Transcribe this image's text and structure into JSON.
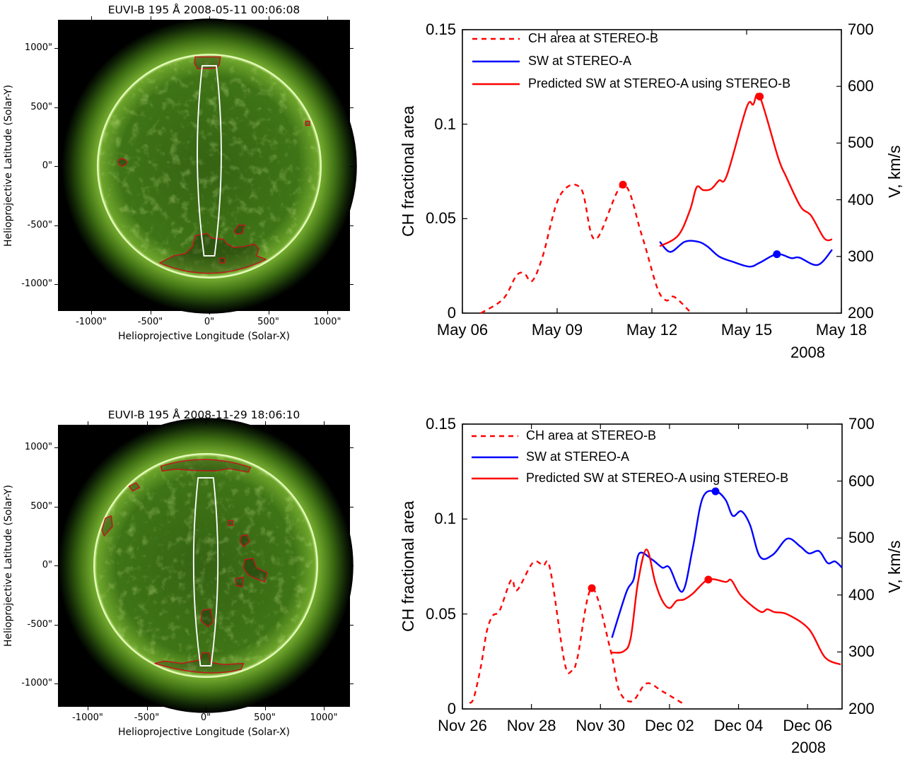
{
  "figure": {
    "panels": [
      {
        "image_title": "EUVI-B 195 Å 2008-05-11 00:06:08",
        "image_xlabel": "Helioprojective Longitude (Solar-X)",
        "image_ylabel": "Helioprojective Latitude (Solar-Y)",
        "image_xticks": [
          "-1000\"",
          "-500\"",
          "0\"",
          "500\"",
          "1000\""
        ],
        "image_yticks": [
          "1000\"",
          "500\"",
          "0\"",
          "-500\"",
          "-1000\""
        ]
      },
      {
        "image_title": "EUVI-B 195 Å 2008-11-29 18:06:10",
        "image_xlabel": "Helioprojective Longitude (Solar-X)",
        "image_ylabel": "Helioprojective Latitude (Solar-Y)",
        "image_xticks": [
          "-1000\"",
          "-500\"",
          "0\"",
          "500\"",
          "1000\""
        ],
        "image_yticks": [
          "1000\"",
          "500\"",
          "0\"",
          "-500\"",
          "-1000\""
        ]
      }
    ],
    "colors": {
      "ch_area": "#ff0000",
      "sw_observed": "#0000ff",
      "sw_predicted": "#ff0000",
      "slit": "#ffffff",
      "contour": "#c0181c"
    }
  },
  "chart_data": [
    {
      "type": "line",
      "ylabel": "CH fractional area",
      "ylabel_right": "V, km/s",
      "ylim": [
        0,
        0.15
      ],
      "ylim_right": [
        200,
        700
      ],
      "yticks": [
        "0",
        "0.05",
        "0.1",
        "0.15"
      ],
      "yticks_right": [
        "200",
        "300",
        "400",
        "500",
        "600",
        "700"
      ],
      "xlim": [
        "2008-05-06T00:00",
        "2008-05-18T00:00"
      ],
      "xticks": [
        {
          "date": "2008-05-06T00:00",
          "label": "May 06"
        },
        {
          "date": "2008-05-09T00:00",
          "label": "May 09"
        },
        {
          "date": "2008-05-12T00:00",
          "label": "May 12"
        },
        {
          "date": "2008-05-15T00:00",
          "label": "May 15"
        },
        {
          "date": "2008-05-18T00:00",
          "label": "May 18"
        }
      ],
      "year_label": "2008",
      "grid": false,
      "legend_position": "top-left",
      "series": [
        {
          "name": "CH area at STEREO-B",
          "axis": "left",
          "style": "dashed",
          "color": "#ff0000",
          "x": [
            "2008-05-06T14:00",
            "2008-05-07T07:00",
            "2008-05-07T17:00",
            "2008-05-07T23:00",
            "2008-05-08T05:00",
            "2008-05-08T13:00",
            "2008-05-09T02:00",
            "2008-05-09T18:00",
            "2008-05-10T05:00",
            "2008-05-11T02:00",
            "2008-05-11T16:00",
            "2008-05-12T04:00",
            "2008-05-12T11:00",
            "2008-05-12T17:00",
            "2008-05-13T06:00"
          ],
          "y": [
            0,
            0.0075,
            0.0198,
            0.021,
            0.017,
            0.03,
            0.062,
            0.066,
            0.039,
            0.068,
            0.042,
            0.0135,
            0.0067,
            0.0086,
            0
          ],
          "marker": {
            "x": "2008-05-11T02:00",
            "y": 0.068
          }
        },
        {
          "name": "SW at STEREO-A",
          "axis": "right",
          "style": "solid",
          "color": "#0000ff",
          "x": [
            "2008-05-12T06:00",
            "2008-05-12T14:00",
            "2008-05-13T01:00",
            "2008-05-13T11:00",
            "2008-05-13T18:00",
            "2008-05-14T03:00",
            "2008-05-14T13:00",
            "2008-05-15T02:00",
            "2008-05-15T10:00",
            "2008-05-15T23:00",
            "2008-05-16T10:00",
            "2008-05-16T16:00",
            "2008-05-17T06:00",
            "2008-05-17T17:00"
          ],
          "y": [
            326,
            308,
            326,
            326,
            318,
            300,
            291,
            282,
            289,
            304,
            297,
            298,
            285,
            312
          ],
          "marker": {
            "x": "2008-05-15T23:00",
            "y": 304
          }
        },
        {
          "name": "Predicted SW at STEREO-A using STEREO-B",
          "axis": "right",
          "style": "solid",
          "color": "#ff0000",
          "x": [
            "2008-05-12T06:00",
            "2008-05-12T20:00",
            "2008-05-13T05:00",
            "2008-05-13T10:00",
            "2008-05-13T15:00",
            "2008-05-13T21:00",
            "2008-05-14T03:00",
            "2008-05-14T09:00",
            "2008-05-15T00:00",
            "2008-05-15T05:00",
            "2008-05-15T10:00",
            "2008-05-16T00:00",
            "2008-05-16T06:00",
            "2008-05-16T17:00",
            "2008-05-17T01:00",
            "2008-05-17T11:00",
            "2008-05-17T17:00"
          ],
          "y": [
            318,
            337,
            382,
            422,
            417,
            419,
            434,
            443,
            563,
            568,
            582,
            474,
            441,
            388,
            372,
            332,
            330
          ],
          "marker": {
            "x": "2008-05-15T10:00",
            "y": 582
          }
        }
      ]
    },
    {
      "type": "line",
      "ylabel": "CH fractional area",
      "ylabel_right": "V, km/s",
      "ylim": [
        0,
        0.15
      ],
      "ylim_right": [
        200,
        700
      ],
      "yticks": [
        "0",
        "0.05",
        "0.1",
        "0.15"
      ],
      "yticks_right": [
        "200",
        "300",
        "400",
        "500",
        "600",
        "700"
      ],
      "xlim": [
        "2008-11-26T00:00",
        "2008-12-07T00:00"
      ],
      "xticks": [
        {
          "date": "2008-11-26T00:00",
          "label": "Nov 26"
        },
        {
          "date": "2008-11-28T00:00",
          "label": "Nov 28"
        },
        {
          "date": "2008-11-30T00:00",
          "label": "Nov 30"
        },
        {
          "date": "2008-12-02T00:00",
          "label": "Dec 02"
        },
        {
          "date": "2008-12-04T00:00",
          "label": "Dec 04"
        },
        {
          "date": "2008-12-06T00:00",
          "label": "Dec 06"
        }
      ],
      "year_label": "2008",
      "grid": false,
      "legend_position": "top-left",
      "series": [
        {
          "name": "CH area at STEREO-B",
          "axis": "left",
          "style": "dashed",
          "color": "#ff0000",
          "x": [
            "2008-11-26T05:00",
            "2008-11-26T08:00",
            "2008-11-26T13:00",
            "2008-11-26T17:00",
            "2008-11-26T21:00",
            "2008-11-27T02:00",
            "2008-11-27T10:00",
            "2008-11-27T14:00",
            "2008-11-28T01:00",
            "2008-11-28T08:00",
            "2008-11-28T13:00",
            "2008-11-28T23:00",
            "2008-11-29T04:00",
            "2008-11-29T08:00",
            "2008-11-29T18:00",
            "2008-11-30T07:00",
            "2008-11-30T13:00",
            "2008-11-30T22:00",
            "2008-12-01T08:00",
            "2008-12-01T19:00",
            "2008-12-02T09:00"
          ],
          "y": [
            0.003,
            0.006,
            0.023,
            0.041,
            0.049,
            0.052,
            0.068,
            0.0625,
            0.077,
            0.0755,
            0.0737,
            0.0246,
            0.02,
            0.027,
            0.0636,
            0.031,
            0.0097,
            0.004,
            0.0134,
            0.0093,
            0.003
          ],
          "marker": {
            "x": "2008-11-29T18:00",
            "y": 0.0636
          }
        },
        {
          "name": "SW at STEREO-A",
          "axis": "right",
          "style": "solid",
          "color": "#0000ff",
          "x": [
            "2008-11-30T08:00",
            "2008-11-30T18:00",
            "2008-11-30T23:00",
            "2008-12-01T03:00",
            "2008-12-01T12:00",
            "2008-12-01T19:00",
            "2008-12-02T00:00",
            "2008-12-02T09:00",
            "2008-12-02T16:00",
            "2008-12-02T23:00",
            "2008-12-03T08:00",
            "2008-12-03T15:00",
            "2008-12-03T20:00",
            "2008-12-04T02:00",
            "2008-12-04T08:00",
            "2008-12-04T15:00",
            "2008-12-05T00:00",
            "2008-12-05T10:00",
            "2008-12-05T19:00",
            "2008-12-06T01:00",
            "2008-12-06T08:00",
            "2008-12-06T14:00",
            "2008-12-06T19:00",
            "2008-12-07T00:00"
          ],
          "y": [
            325,
            405,
            427,
            473,
            462,
            448,
            448,
            406,
            480,
            570,
            582,
            567,
            539,
            547,
            523,
            467,
            471,
            499,
            485,
            473,
            477,
            456,
            459,
            448
          ],
          "marker": {
            "x": "2008-12-03T08:00",
            "y": 582
          }
        },
        {
          "name": "Predicted SW at STEREO-A using STEREO-B",
          "axis": "right",
          "style": "solid",
          "color": "#ff0000",
          "x": [
            "2008-11-30T08:00",
            "2008-11-30T16:00",
            "2008-11-30T21:00",
            "2008-12-01T02:00",
            "2008-12-01T08:00",
            "2008-12-01T14:00",
            "2008-12-01T19:00",
            "2008-12-02T00:00",
            "2008-12-02T05:00",
            "2008-12-02T10:00",
            "2008-12-02T16:00",
            "2008-12-03T03:00",
            "2008-12-03T15:00",
            "2008-12-03T19:00",
            "2008-12-04T02:00",
            "2008-12-04T15:00",
            "2008-12-04T20:00",
            "2008-12-05T01:00",
            "2008-12-05T10:00",
            "2008-12-06T01:00",
            "2008-12-06T12:00",
            "2008-12-06T23:00"
          ],
          "y": [
            299,
            301,
            324,
            421,
            480,
            423,
            390,
            377,
            390,
            392,
            402,
            427,
            423,
            426,
            398,
            371,
            375,
            370,
            366,
            340,
            291,
            278
          ],
          "marker": {
            "x": "2008-12-03T03:00",
            "y": 427
          }
        }
      ]
    }
  ]
}
